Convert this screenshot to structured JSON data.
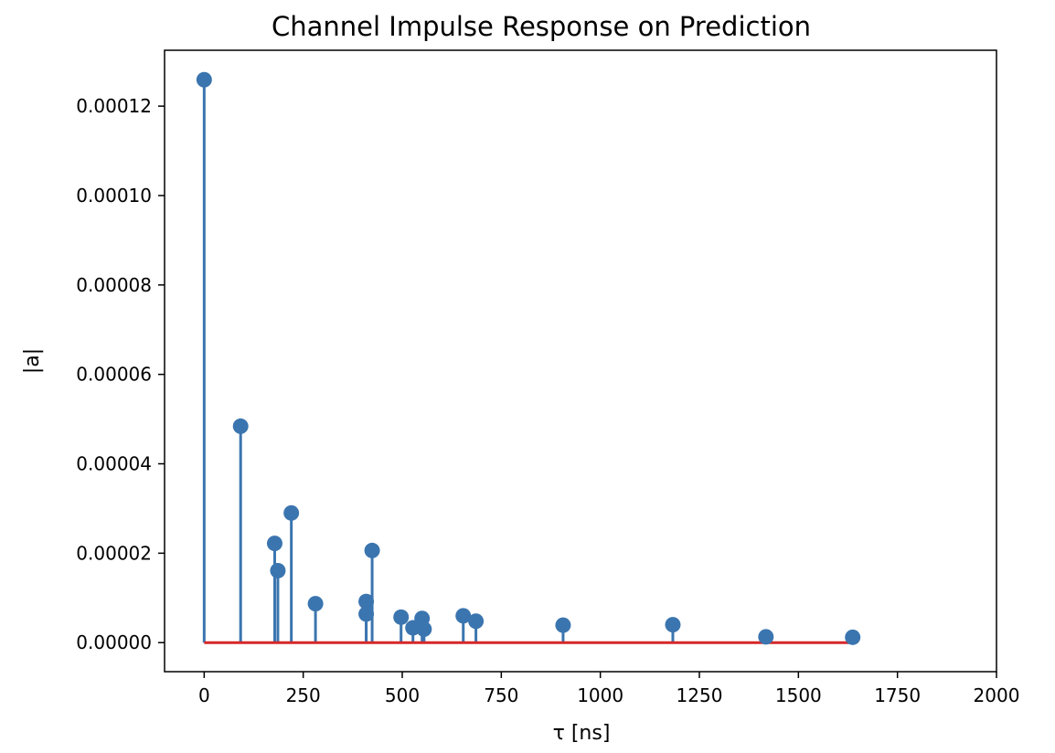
{
  "chart_data": {
    "type": "stem",
    "title": "Channel Impulse Response on Prediction",
    "xlabel": "τ [ns]",
    "ylabel": "|a|",
    "xlim": [
      -100,
      2000
    ],
    "ylim": [
      -6.5e-06,
      0.0001325
    ],
    "xticks": [
      0,
      250,
      500,
      750,
      1000,
      1250,
      1500,
      1750,
      2000
    ],
    "xtick_labels": [
      "0",
      "250",
      "500",
      "750",
      "1000",
      "1250",
      "1500",
      "1750",
      "2000"
    ],
    "yticks": [
      0,
      2e-05,
      4e-05,
      6e-05,
      8e-05,
      0.0001,
      0.00012
    ],
    "ytick_labels": [
      "0.00000",
      "0.00002",
      "0.00004",
      "0.00006",
      "0.00008",
      "0.00010",
      "0.00012"
    ],
    "grid": false,
    "stem_color": "#3b75af",
    "baseline_color": "#d62728",
    "points": [
      {
        "x": 0,
        "y": 0.0001259
      },
      {
        "x": 92,
        "y": 4.84e-05
      },
      {
        "x": 178,
        "y": 2.22e-05
      },
      {
        "x": 186,
        "y": 1.61e-05
      },
      {
        "x": 220,
        "y": 2.9e-05
      },
      {
        "x": 281,
        "y": 8.7e-06
      },
      {
        "x": 409,
        "y": 9.2e-06
      },
      {
        "x": 409,
        "y": 6.4e-06
      },
      {
        "x": 424,
        "y": 2.06e-05
      },
      {
        "x": 497,
        "y": 5.7e-06
      },
      {
        "x": 527,
        "y": 3.3e-06
      },
      {
        "x": 550,
        "y": 5.4e-06
      },
      {
        "x": 555,
        "y": 3e-06
      },
      {
        "x": 654,
        "y": 6e-06
      },
      {
        "x": 686,
        "y": 4.8e-06
      },
      {
        "x": 906,
        "y": 3.9e-06
      },
      {
        "x": 1183,
        "y": 4e-06
      },
      {
        "x": 1418,
        "y": 1.3e-06
      },
      {
        "x": 1637,
        "y": 1.2e-06
      }
    ],
    "baseline": {
      "y": 0,
      "x_start": 0,
      "x_end": 1637
    }
  }
}
